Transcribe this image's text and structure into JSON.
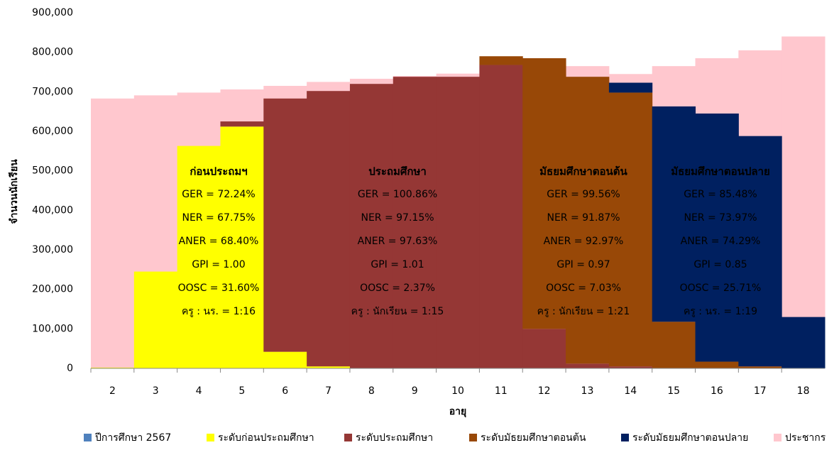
{
  "chart_data": {
    "type": "step-area",
    "stacked": true,
    "x_label": "อายุ",
    "y_label": "จำนวนนักเรียน",
    "categories": [
      "2",
      "3",
      "4",
      "5",
      "6",
      "7",
      "8",
      "9",
      "10",
      "11",
      "12",
      "13",
      "14",
      "15",
      "16",
      "17",
      "18"
    ],
    "ylim": [
      0,
      900000
    ],
    "yticks": [
      0,
      {
        "value": 100000,
        "label": "100,000"
      },
      {
        "value": 200000,
        "label": "200,000"
      },
      {
        "value": 300000,
        "label": "300,000"
      },
      {
        "value": 400000,
        "label": "400,000"
      },
      {
        "value": 500000,
        "label": "500,000"
      },
      {
        "value": 600000,
        "label": "600,000"
      },
      {
        "value": 700000,
        "label": "700,000"
      },
      {
        "value": 800000,
        "label": "800,000"
      },
      {
        "value": 900000,
        "label": "900,000"
      }
    ],
    "series": [
      {
        "name": "ปีการศึกษา 2567",
        "color": "#4f81bd",
        "values": [
          null,
          null,
          null,
          null,
          null,
          null,
          null,
          null,
          null,
          null,
          null,
          null,
          null,
          null,
          null,
          null,
          null
        ]
      },
      {
        "name": "ระดับก่อนประถมศึกษา",
        "color": "#ffff00",
        "values": [
          2000,
          245000,
          563000,
          612000,
          42000,
          5000,
          0,
          0,
          0,
          0,
          0,
          0,
          0,
          0,
          0,
          0,
          0
        ]
      },
      {
        "name": "ระดับประถมศึกษา",
        "color": "#953735",
        "values": [
          0,
          0,
          0,
          13000,
          641000,
          697000,
          720000,
          738000,
          738000,
          768000,
          100000,
          12000,
          5000,
          0,
          0,
          0,
          0
        ]
      },
      {
        "name": "ระดับมัธยมศึกษาตอนต้น",
        "color": "#984807",
        "values": [
          0,
          0,
          0,
          0,
          0,
          0,
          0,
          0,
          0,
          22000,
          685000,
          726000,
          693000,
          118000,
          17000,
          5000,
          0
        ]
      },
      {
        "name": "ระดับมัธยมศึกษาตอนปลาย",
        "color": "#002060",
        "values": [
          0,
          0,
          0,
          0,
          0,
          0,
          0,
          0,
          0,
          0,
          0,
          0,
          25000,
          545000,
          628000,
          583000,
          130000
        ]
      },
      {
        "name": "ประชากร",
        "color": "#ffc7ce",
        "stacked": false,
        "values": [
          683000,
          691000,
          698000,
          706000,
          715000,
          725000,
          733000,
          740000,
          746000,
          770000,
          780000,
          765000,
          745000,
          765000,
          785000,
          805000,
          840000
        ]
      }
    ],
    "annotations": [
      {
        "title": "ก่อนประถมฯ",
        "title_color": "#ff0000",
        "color": "#000000",
        "lines": [
          "GER = 72.24%",
          "NER = 67.75%",
          "ANER = 68.40%",
          "GPI = 1.00",
          "OOSC = 31.60%",
          "ครู : นร. = 1:16"
        ]
      },
      {
        "title": "ประถมศึกษา",
        "title_color": "#ffffff",
        "color": "#1f1fa0",
        "lines": [
          "GER = 100.86%",
          "NER = 97.15%",
          "ANER = 97.63%",
          "GPI = 1.01",
          "OOSC = 2.37%",
          "ครู : นักเรียน = 1:15"
        ]
      },
      {
        "title": "มัธยมศึกษาตอนต้น",
        "title_color": "#ffc000",
        "color": "#ffffff",
        "lines": [
          "GER = 99.56%",
          "NER = 91.87%",
          "ANER = 92.97%",
          "GPI = 0.97",
          "OOSC = 7.03%",
          "ครู : นักเรียน = 1:21"
        ]
      },
      {
        "title": "มัธยมศึกษาตอนปลาย",
        "title_color": "#ffffff",
        "color": "#ffc000",
        "lines": [
          "GER = 85.48%",
          "NER = 73.97%",
          "ANER = 74.29%",
          "GPI = 0.85",
          "OOSC = 25.71%",
          "ครู : นร. = 1:19"
        ]
      }
    ]
  }
}
